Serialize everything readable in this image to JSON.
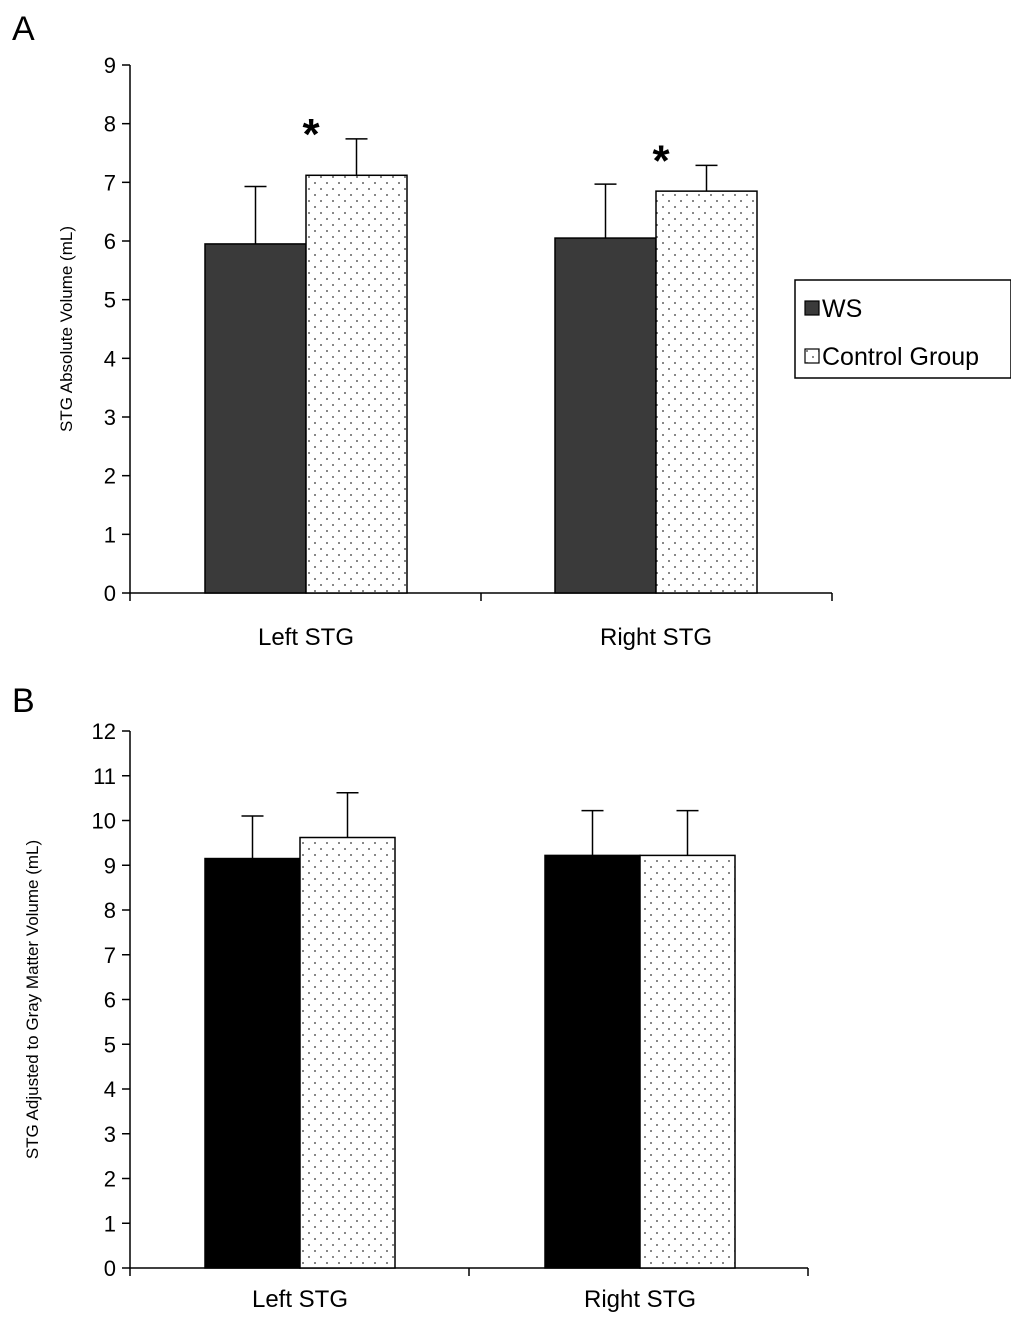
{
  "chart_data": [
    {
      "type": "bar",
      "panel": "A",
      "title": "",
      "xlabel": "",
      "ylabel": "STG Absolute Volume (mL)",
      "ylim": [
        0,
        9
      ],
      "yticks": [
        0,
        1,
        2,
        3,
        4,
        5,
        6,
        7,
        8,
        9
      ],
      "categories": [
        "Left STG",
        "Right STG"
      ],
      "series": [
        {
          "name": "WS",
          "values": [
            5.95,
            6.05
          ],
          "errors": [
            0.98,
            0.92
          ],
          "color": "#3a3a3a"
        },
        {
          "name": "Control Group",
          "values": [
            7.12,
            6.85
          ],
          "errors": [
            0.62,
            0.44
          ],
          "color": "#ffffff",
          "pattern": "dots"
        }
      ],
      "annotations": [
        "*",
        "*"
      ],
      "legend": {
        "position": "right",
        "entries": [
          "WS",
          "Control Group"
        ]
      },
      "grid": false
    },
    {
      "type": "bar",
      "panel": "B",
      "title": "",
      "xlabel": "",
      "ylabel": "STG Adjusted to Gray Matter Volume (mL)",
      "ylim": [
        0,
        12
      ],
      "yticks": [
        0,
        1,
        2,
        3,
        4,
        5,
        6,
        7,
        8,
        9,
        10,
        11,
        12
      ],
      "categories": [
        "Left STG",
        "Right STG"
      ],
      "series": [
        {
          "name": "WS",
          "values": [
            9.15,
            9.22
          ],
          "errors": [
            0.95,
            1.0
          ],
          "color": "#000000"
        },
        {
          "name": "Control Group",
          "values": [
            9.62,
            9.22
          ],
          "errors": [
            1.0,
            1.0
          ],
          "color": "#ffffff",
          "pattern": "dots"
        }
      ],
      "grid": false
    }
  ]
}
